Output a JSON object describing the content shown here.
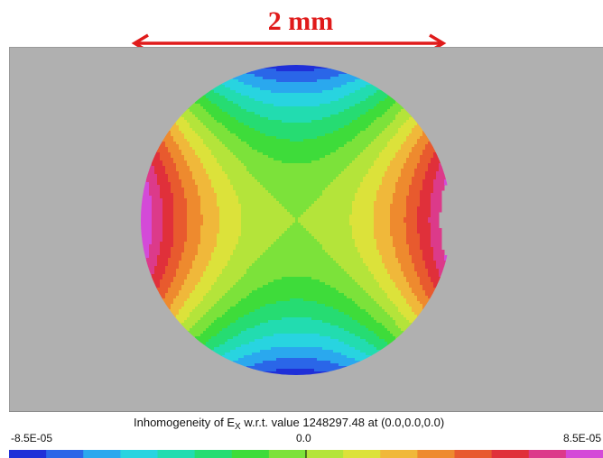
{
  "scale_bar": {
    "label": "2 mm",
    "color": "#e01b1b"
  },
  "colorbar": {
    "title_prefix": "Inhomogeneity of E",
    "title_sub": "X",
    "title_suffix": " w.r.t. value 1248297.48 at (0.0,0.0,0.0)",
    "min_label": "-8.5E-05",
    "mid_label": "0.0",
    "max_label": "8.5E-05",
    "min": -8.5e-05,
    "max": 8.5e-05,
    "colors": [
      "#1f2fd8",
      "#2a66e8",
      "#2aa8ee",
      "#28d4e0",
      "#22dcb0",
      "#26dc72",
      "#3edc3a",
      "#7ce23a",
      "#b4e43a",
      "#dce23a",
      "#f0b83a",
      "#ee8a2e",
      "#e85a2e",
      "#e0303a",
      "#dc3a8a",
      "#d44ad8"
    ]
  },
  "background_color": "#b0b0b0"
}
